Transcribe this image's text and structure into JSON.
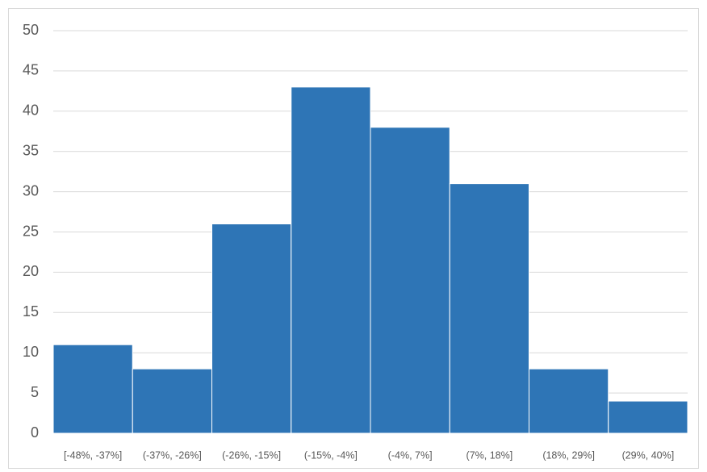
{
  "chart_data": {
    "type": "bar",
    "categories": [
      "[-48%, -37%]",
      "(-37%, -26%]",
      "(-26%, -15%]",
      "(-15%, -4%]",
      "(-4%, 7%]",
      "(7%, 18%]",
      "(18%, 29%]",
      "(29%, 40%]"
    ],
    "values": [
      11,
      8,
      26,
      43,
      38,
      31,
      8,
      4
    ],
    "color": "#2e75b6",
    "ylim": [
      0,
      50
    ],
    "yticks": [
      0,
      5,
      10,
      15,
      20,
      25,
      30,
      35,
      40,
      45,
      50
    ],
    "grid": true
  }
}
